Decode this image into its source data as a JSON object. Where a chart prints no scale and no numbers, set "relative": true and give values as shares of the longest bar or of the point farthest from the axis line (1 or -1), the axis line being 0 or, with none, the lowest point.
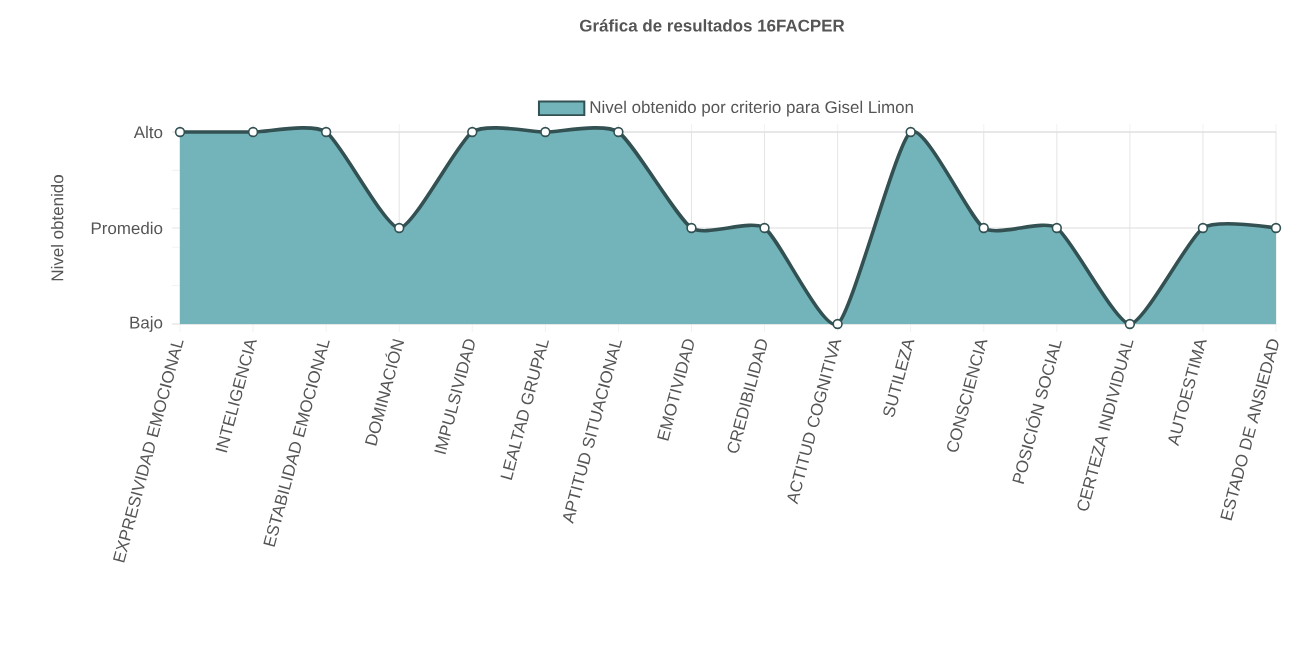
{
  "chart_data": {
    "type": "area",
    "title": "Gráfica de resultados 16FACPER",
    "ylabel": "Nivel obtenido",
    "categories": [
      "EXPRESIVIDAD EMOCIONAL",
      "INTELIGENCIA",
      "ESTABILIDAD EMOCIONAL",
      "DOMINACIÓN",
      "IMPULSIVIDAD",
      "LEALTAD GRUPAL",
      "APTITUD SITUACIONAL",
      "EMOTIVIDAD",
      "CREDIBILIDAD",
      "ACTITUD COGNITIVA",
      "SUTILEZA",
      "CONSCIENCIA",
      "POSICIÓN SOCIAL",
      "CERTEZA INDIVIDUAL",
      "AUTOESTIMA",
      "ESTADO DE ANSIEDAD"
    ],
    "series": [
      {
        "name": "Nivel obtenido por criterio para Gisel Limon",
        "color": "#72b4b9",
        "values": [
          1,
          1,
          1,
          0.5,
          1,
          1,
          1,
          0.5,
          0.5,
          0,
          1,
          0.5,
          0.5,
          0,
          0.5,
          0.5
        ]
      }
    ],
    "relative": true,
    "ref_lines": [
      {
        "axis": "y",
        "value": 0,
        "label": "Bajo"
      },
      {
        "axis": "y",
        "value": 0.5,
        "label": "Promedio"
      },
      {
        "axis": "y",
        "value": 1,
        "label": "Alto"
      }
    ],
    "grid": "x",
    "legend": "top",
    "marker": "circle",
    "line_style": "solid"
  }
}
